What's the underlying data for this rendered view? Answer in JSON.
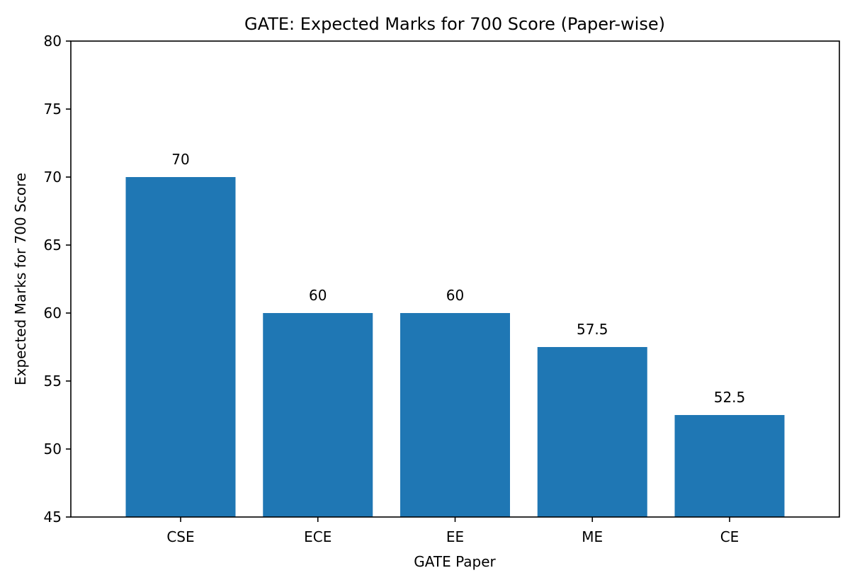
{
  "chart_data": {
    "type": "bar",
    "title": "GATE: Expected Marks for 700 Score (Paper-wise)",
    "xlabel": "GATE Paper",
    "ylabel": "Expected Marks for 700 Score",
    "categories": [
      "CSE",
      "ECE",
      "EE",
      "ME",
      "CE"
    ],
    "values": [
      70,
      60,
      60,
      57.5,
      52.5
    ],
    "value_labels": [
      "70",
      "60",
      "60",
      "57.5",
      "52.5"
    ],
    "ylim": [
      45,
      80
    ],
    "yticks": [
      45,
      50,
      55,
      60,
      65,
      70,
      75,
      80
    ],
    "grid": false,
    "legend": null,
    "bar_color": "#1f77b4"
  }
}
